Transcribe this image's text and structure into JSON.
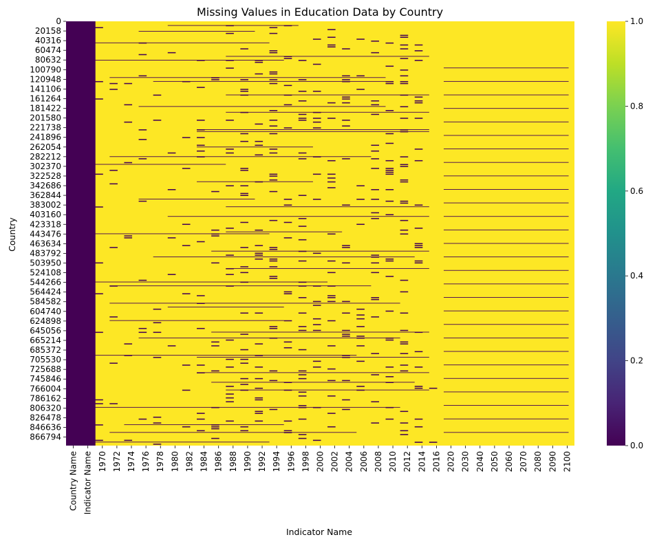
{
  "chart_data": {
    "type": "heatmap",
    "title": "Missing Values in Education Data by Country",
    "xlabel": "Indicator Name",
    "ylabel": "Country",
    "colormap": "viridis",
    "color_range": [
      0.0,
      1.0
    ],
    "colorbar_ticks": [
      "0.0",
      "0.2",
      "0.4",
      "0.6",
      "0.8",
      "1.0"
    ],
    "y_tick_labels": [
      "0",
      "20158",
      "40316",
      "60474",
      "80632",
      "100790",
      "120948",
      "141106",
      "161264",
      "181422",
      "201580",
      "221738",
      "241896",
      "262054",
      "282212",
      "302370",
      "322528",
      "342686",
      "362844",
      "383002",
      "403160",
      "423318",
      "443476",
      "463634",
      "483792",
      "503950",
      "524108",
      "544266",
      "564424",
      "584582",
      "604740",
      "624898",
      "645056",
      "665214",
      "685372",
      "705530",
      "725688",
      "745846",
      "766004",
      "786162",
      "806320",
      "826478",
      "846636",
      "866794"
    ],
    "x_tick_labels": [
      "Country Name",
      "Indicator Name",
      "1970",
      "1972",
      "1974",
      "1976",
      "1978",
      "1980",
      "1982",
      "1984",
      "1986",
      "1988",
      "1990",
      "1992",
      "1994",
      "1996",
      "1998",
      "2000",
      "2002",
      "2004",
      "2006",
      "2008",
      "2010",
      "2012",
      "2014",
      "2016",
      "2020",
      "2030",
      "2040",
      "2050",
      "2060",
      "2070",
      "2080",
      "2090",
      "2100"
    ],
    "summary": {
      "always_present_columns": [
        "Country Name",
        "Indicator Name"
      ],
      "present_value": 0,
      "missing_value": 1,
      "note_columns_mostly_missing": "All year columns 1970-2100 are predominantly missing (1.0) with scattered present (0.0) rows, denser present data around 1990-2015"
    }
  }
}
